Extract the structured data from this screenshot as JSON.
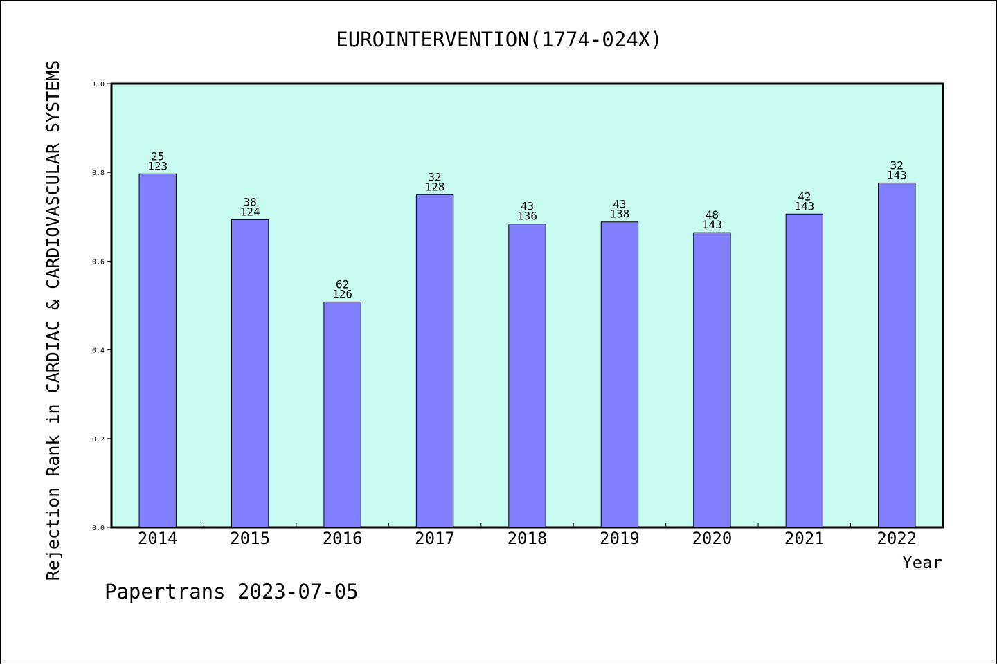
{
  "colors": {
    "plot_background": "#c8fcf0",
    "bar_fill": "#8080ff",
    "bar_stroke": "#000000",
    "axis": "#000000",
    "page_background": "#ffffff"
  },
  "footer": "Papertrans 2023-07-05",
  "chart_data": {
    "type": "bar",
    "title": "EUROINTERVENTION(1774-024X)",
    "xlabel": "Year",
    "ylabel": "Rejection Rank in CARDIAC & CARDIOVASCULAR SYSTEMS",
    "ylim": [
      0,
      1.0
    ],
    "yticks": [
      "0.0",
      "0.2",
      "0.4",
      "0.6",
      "0.8",
      "1.0"
    ],
    "grid": false,
    "categories": [
      "2014",
      "2015",
      "2016",
      "2017",
      "2018",
      "2019",
      "2020",
      "2021",
      "2022"
    ],
    "values": [
      0.7967,
      0.6935,
      0.5079,
      0.75,
      0.6838,
      0.6884,
      0.6643,
      0.7063,
      0.7762
    ],
    "data_labels": [
      {
        "rank": "25",
        "total": "123"
      },
      {
        "rank": "38",
        "total": "124"
      },
      {
        "rank": "62",
        "total": "126"
      },
      {
        "rank": "32",
        "total": "128"
      },
      {
        "rank": "43",
        "total": "136"
      },
      {
        "rank": "43",
        "total": "138"
      },
      {
        "rank": "48",
        "total": "143"
      },
      {
        "rank": "42",
        "total": "143"
      },
      {
        "rank": "32",
        "total": "143"
      }
    ]
  }
}
